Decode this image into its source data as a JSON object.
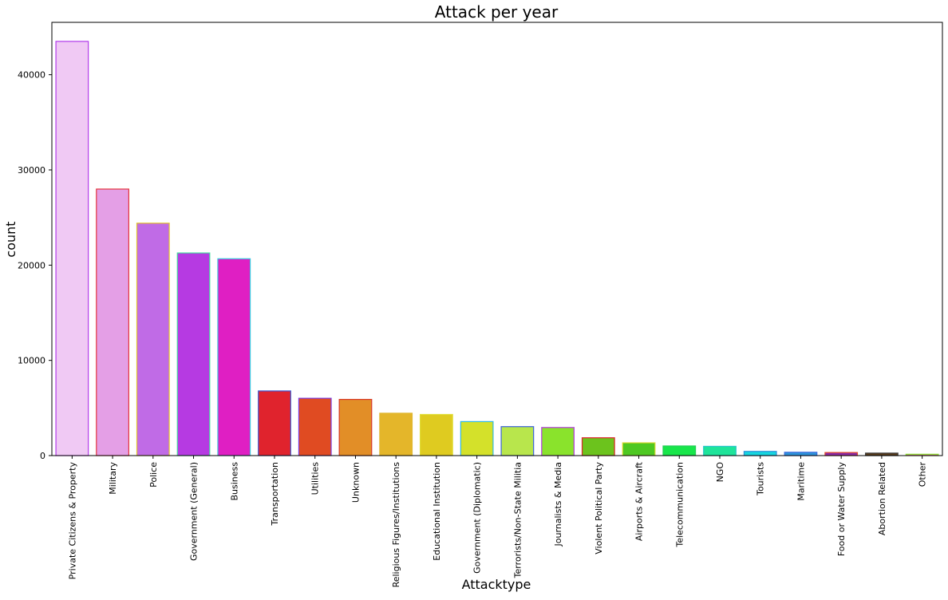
{
  "chart_data": {
    "type": "bar",
    "title": "Attack per year",
    "xlabel": "Attacktype",
    "ylabel": "count",
    "ylim": [
      0,
      45500
    ],
    "yticks": [
      0,
      10000,
      20000,
      30000,
      40000
    ],
    "grid": false,
    "categories": [
      "Private Citizens & Property",
      "Military",
      "Police",
      "Government (General)",
      "Business",
      "Transportation",
      "Utilities",
      "Unknown",
      "Religious Figures/Institutions",
      "Educational Institution",
      "Government (Diplomatic)",
      "Terrorists/Non-State Militia",
      "Journalists & Media",
      "Violent Political Party",
      "Airports & Aircraft",
      "Telecommunication",
      "NGO",
      "Tourists",
      "Maritime",
      "Food or Water Supply",
      "Abortion Related",
      "Other"
    ],
    "values": [
      43500,
      27990,
      24410,
      21280,
      20670,
      6790,
      6020,
      5900,
      4450,
      4320,
      3570,
      3040,
      2950,
      1870,
      1340,
      1010,
      970,
      440,
      350,
      320,
      260,
      140
    ],
    "bar_colors": [
      "#f0c9f4",
      "#e49fe6",
      "#c06be6",
      "#b63ae2",
      "#df1fc3",
      "#e0232d",
      "#e04b22",
      "#e28e27",
      "#e4b62a",
      "#dfcb20",
      "#d4e12a",
      "#b8e64c",
      "#8ae32c",
      "#6cc31d",
      "#4ec822",
      "#18e64a",
      "#1fe49a",
      "#16d6df",
      "#2e94da",
      "#8c2aa8",
      "#5b3c1b",
      "#e45ba4"
    ],
    "edge_colors": [
      "#b23bea",
      "#e3353c",
      "#e1c22f",
      "#43dd9f",
      "#37c2de",
      "#3a5bd7",
      "#7b3bdc",
      "#d93a2b",
      "#e0b62f",
      "#dfdd33",
      "#2fb8e1",
      "#3c62dc",
      "#b43ae0",
      "#e0232d",
      "#d9d92a",
      "#22cc55",
      "#22c5c8",
      "#2f8fdc",
      "#3a6ae0",
      "#e0462a",
      "#3a3a3a",
      "#8ae32c"
    ]
  }
}
